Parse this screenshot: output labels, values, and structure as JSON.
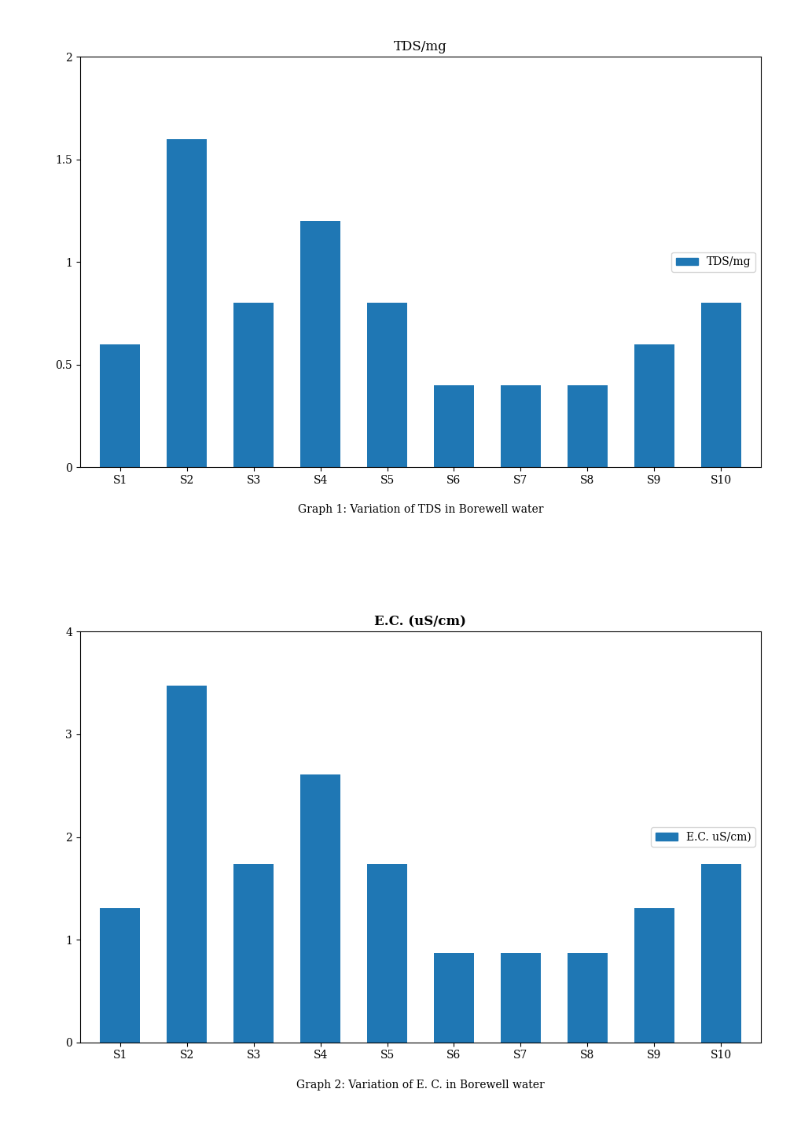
{
  "chart_data": [
    {
      "type": "bar",
      "title": "TDS/mg",
      "categories": [
        "S1",
        "S2",
        "S3",
        "S4",
        "S5",
        "S6",
        "S7",
        "S8",
        "S9",
        "S10"
      ],
      "series": [
        {
          "name": "TDS/mg",
          "values": [
            0.6,
            1.6,
            0.8,
            1.2,
            0.8,
            0.4,
            0.4,
            0.4,
            0.6,
            0.8
          ]
        }
      ],
      "ylim": [
        0,
        2
      ],
      "yticks": [
        0,
        0.5,
        1,
        1.5,
        2
      ],
      "legend": "center right",
      "annotations": [
        "Graph 1: Variation of TDS in Borewell water"
      ]
    },
    {
      "type": "bar",
      "title": "E.C. (uS/cm)",
      "categories": [
        "S1",
        "S2",
        "S3",
        "S4",
        "S5",
        "S6",
        "S7",
        "S8",
        "S9",
        "S10"
      ],
      "series": [
        {
          "name": "E.C. uS/cm)",
          "values": [
            1.304,
            3.478,
            1.739,
            2.608,
            1.739,
            0.869,
            0.869,
            0.869,
            1.304,
            1.739
          ]
        }
      ],
      "ylim": [
        0,
        4
      ],
      "yticks": [
        0,
        1,
        2,
        3,
        4
      ],
      "legend": "center right",
      "annotations": [
        "Graph 2: Variation of E. C. in Borewell water"
      ]
    }
  ]
}
